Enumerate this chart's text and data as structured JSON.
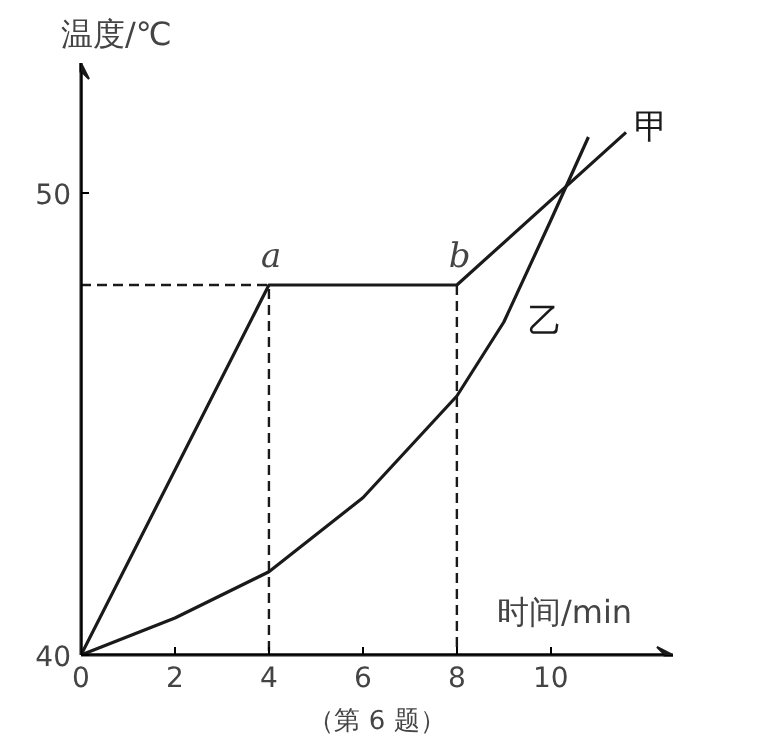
{
  "chart_data": {
    "type": "line",
    "xlabel": "时间/min",
    "ylabel": "温度/℃",
    "xlim": [
      0,
      12.6
    ],
    "ylim": [
      40,
      52.8
    ],
    "xticks": [
      0,
      2,
      4,
      6,
      8,
      10
    ],
    "yticks": [
      40,
      50
    ],
    "series": [
      {
        "name": "甲",
        "color": "#1a1a1a",
        "x": [
          0,
          4,
          8,
          11.6
        ],
        "values": [
          40,
          48,
          48,
          51.3
        ]
      },
      {
        "name": "乙",
        "color": "#1a1a1a",
        "x": [
          0,
          2,
          4,
          6,
          8,
          9,
          10,
          10.8
        ],
        "values": [
          40,
          40.8,
          41.8,
          43.4,
          45.6,
          47.2,
          49.4,
          51.2
        ]
      },
      {
        "color": "#1a1a1a",
        "line_style": "dashed",
        "x": [
          0,
          4,
          4
        ],
        "values": [
          48,
          48,
          40
        ]
      },
      {
        "color": "#1a1a1a",
        "line_style": "dashed",
        "x": [
          8,
          8
        ],
        "values": [
          48,
          40
        ]
      }
    ],
    "annotations": [
      {
        "text": "a",
        "x": 4,
        "y": 48
      },
      {
        "text": "b",
        "x": 8,
        "y": 48
      },
      "（第 6 题）"
    ],
    "grid": false,
    "marker": "none",
    "line_style": "solid"
  }
}
